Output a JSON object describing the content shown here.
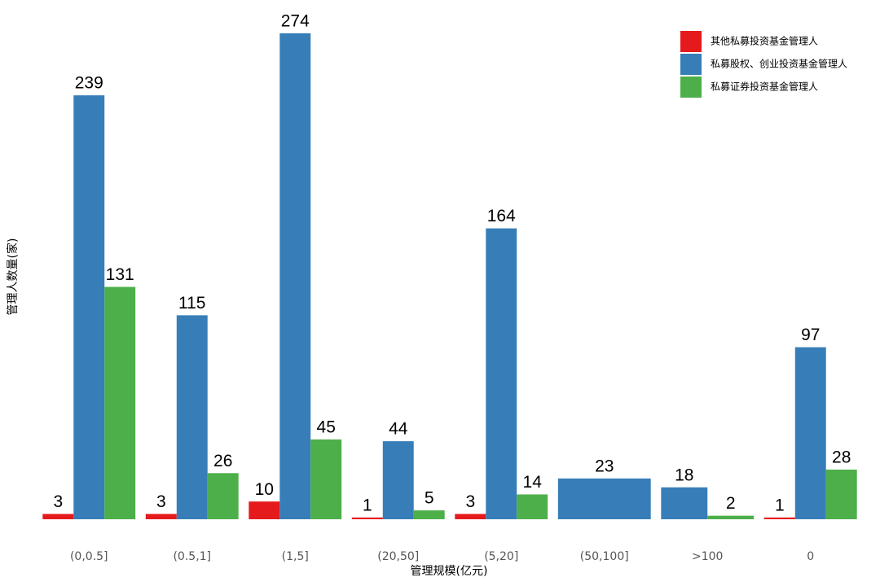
{
  "chart_data": {
    "type": "bar",
    "x_label": "管理规模(亿元)",
    "y_label": "管理人数量(家)",
    "categories": [
      "(0,0.5]",
      "(0.5,1]",
      "(1,5]",
      "(20,50]",
      "(5,20]",
      "(50,100]",
      ">100",
      "0"
    ],
    "series": [
      {
        "name": "其他私募投资基金管理人",
        "color": "#e41a1c",
        "values": [
          3,
          3,
          10,
          1,
          3,
          null,
          null,
          1
        ]
      },
      {
        "name": "私募股权、创业投资基金管理人",
        "color": "#377eb8",
        "values": [
          239,
          115,
          274,
          44,
          164,
          23,
          18,
          97
        ]
      },
      {
        "name": "私募证券投资基金管理人",
        "color": "#4daf4a",
        "values": [
          131,
          26,
          45,
          5,
          14,
          null,
          2,
          28
        ]
      }
    ],
    "legend": "top-right"
  }
}
